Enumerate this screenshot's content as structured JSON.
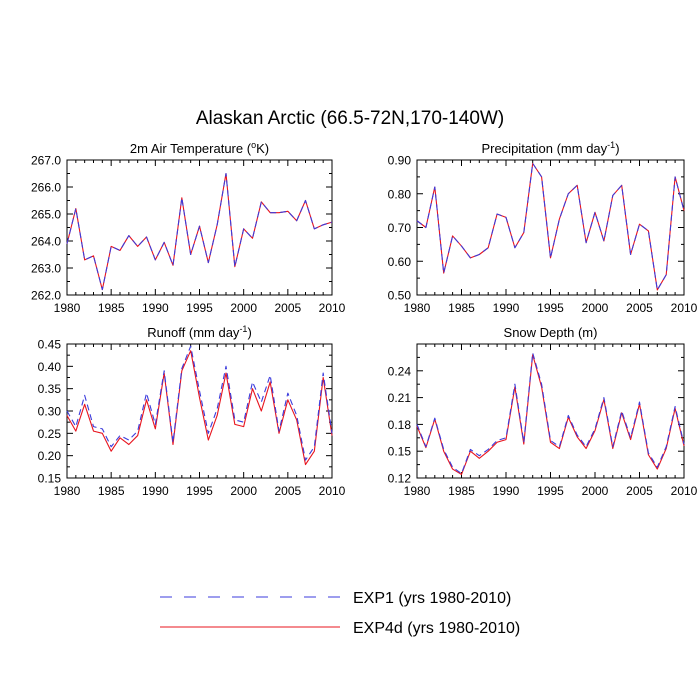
{
  "figure": {
    "title": "Alaskan Arctic (66.5-72N,170-140W)"
  },
  "legend": {
    "entries": [
      {
        "name": "EXP1 (yrs 1980-2010)",
        "color": "#3b3bdc",
        "dash": true
      },
      {
        "name": "EXP4d (yrs 1980-2010)",
        "color": "#e8141e",
        "dash": false
      }
    ]
  },
  "chart_data": [
    {
      "type": "line",
      "title": "2m Air Temperature (°K)",
      "title_main": "2m Air Temperature (",
      "title_sup": "o",
      "title_end": "K)",
      "xlim": [
        1980,
        2010
      ],
      "ylim": [
        262.0,
        267.0
      ],
      "x_ticks": [
        1980,
        1985,
        1990,
        1995,
        2000,
        2005,
        2010
      ],
      "x_tick_labels": [
        "1980",
        "1985",
        "1990",
        "1995",
        "2000",
        "2005",
        "2010"
      ],
      "y_ticks": [
        262.0,
        263.0,
        264.0,
        265.0,
        266.0,
        267.0
      ],
      "y_tick_labels": [
        "262.0",
        "263.0",
        "264.0",
        "265.0",
        "266.0",
        "267.0"
      ],
      "x": [
        1980,
        1981,
        1982,
        1983,
        1984,
        1985,
        1986,
        1987,
        1988,
        1989,
        1990,
        1991,
        1992,
        1993,
        1994,
        1995,
        1996,
        1997,
        1998,
        1999,
        2000,
        2001,
        2002,
        2003,
        2004,
        2005,
        2006,
        2007,
        2008,
        2009,
        2010
      ],
      "series": [
        {
          "name": "EXP1 (yrs 1980-2010)",
          "values": [
            263.9,
            265.2,
            263.3,
            263.45,
            262.2,
            263.8,
            263.65,
            264.2,
            263.8,
            264.15,
            263.3,
            263.95,
            263.1,
            265.6,
            263.5,
            264.55,
            263.2,
            264.6,
            266.5,
            263.05,
            264.45,
            264.1,
            265.45,
            265.05,
            265.05,
            265.1,
            264.75,
            265.5,
            264.45,
            264.6,
            264.7
          ]
        },
        {
          "name": "EXP4d (yrs 1980-2010)",
          "values": [
            263.9,
            265.2,
            263.3,
            263.45,
            262.2,
            263.8,
            263.65,
            264.2,
            263.8,
            264.15,
            263.3,
            263.95,
            263.1,
            265.6,
            263.5,
            264.55,
            263.2,
            264.6,
            266.5,
            263.05,
            264.45,
            264.1,
            265.45,
            265.05,
            265.05,
            265.1,
            264.75,
            265.5,
            264.45,
            264.6,
            264.7
          ]
        }
      ]
    },
    {
      "type": "line",
      "title": "Precipitation (mm day-1)",
      "title_main": "Precipitation (mm day",
      "title_sup": "-1",
      "title_end": ")",
      "xlim": [
        1980,
        2010
      ],
      "ylim": [
        0.5,
        0.9
      ],
      "x_ticks": [
        1980,
        1985,
        1990,
        1995,
        2000,
        2005,
        2010
      ],
      "x_tick_labels": [
        "1980",
        "1985",
        "1990",
        "1995",
        "2000",
        "2005",
        "2010"
      ],
      "y_ticks": [
        0.5,
        0.6,
        0.7,
        0.8,
        0.9
      ],
      "y_tick_labels": [
        "0.50",
        "0.60",
        "0.70",
        "0.80",
        "0.90"
      ],
      "x": [
        1980,
        1981,
        1982,
        1983,
        1984,
        1985,
        1986,
        1987,
        1988,
        1989,
        1990,
        1991,
        1992,
        1993,
        1994,
        1995,
        1996,
        1997,
        1998,
        1999,
        2000,
        2001,
        2002,
        2003,
        2004,
        2005,
        2006,
        2007,
        2008,
        2009,
        2010
      ],
      "series": [
        {
          "name": "EXP1 (yrs 1980-2010)",
          "values": [
            0.72,
            0.7,
            0.82,
            0.565,
            0.675,
            0.645,
            0.61,
            0.62,
            0.64,
            0.74,
            0.73,
            0.64,
            0.685,
            0.89,
            0.85,
            0.61,
            0.725,
            0.8,
            0.825,
            0.655,
            0.745,
            0.66,
            0.795,
            0.825,
            0.62,
            0.71,
            0.69,
            0.515,
            0.56,
            0.85,
            0.75
          ]
        },
        {
          "name": "EXP4d (yrs 1980-2010)",
          "values": [
            0.72,
            0.7,
            0.82,
            0.565,
            0.675,
            0.645,
            0.61,
            0.62,
            0.64,
            0.74,
            0.73,
            0.64,
            0.685,
            0.89,
            0.85,
            0.61,
            0.725,
            0.8,
            0.825,
            0.655,
            0.745,
            0.66,
            0.795,
            0.825,
            0.62,
            0.71,
            0.69,
            0.515,
            0.56,
            0.85,
            0.75
          ]
        }
      ]
    },
    {
      "type": "line",
      "title": "Runoff (mm day-1)",
      "title_main": "Runoff (mm day",
      "title_sup": "-1",
      "title_end": ")",
      "xlim": [
        1980,
        2010
      ],
      "ylim": [
        0.15,
        0.45
      ],
      "x_ticks": [
        1980,
        1985,
        1990,
        1995,
        2000,
        2005,
        2010
      ],
      "x_tick_labels": [
        "1980",
        "1985",
        "1990",
        "1995",
        "2000",
        "2005",
        "2010"
      ],
      "y_ticks": [
        0.15,
        0.2,
        0.25,
        0.3,
        0.35,
        0.4,
        0.45
      ],
      "y_tick_labels": [
        "0.15",
        "0.20",
        "0.25",
        "0.30",
        "0.35",
        "0.40",
        "0.45"
      ],
      "x": [
        1980,
        1981,
        1982,
        1983,
        1984,
        1985,
        1986,
        1987,
        1988,
        1989,
        1990,
        1991,
        1992,
        1993,
        1994,
        1995,
        1996,
        1997,
        1998,
        1999,
        2000,
        2001,
        2002,
        2003,
        2004,
        2005,
        2006,
        2007,
        2008,
        2009,
        2010
      ],
      "series": [
        {
          "name": "EXP1 (yrs 1980-2010)",
          "values": [
            0.3,
            0.265,
            0.335,
            0.265,
            0.26,
            0.22,
            0.245,
            0.235,
            0.255,
            0.34,
            0.27,
            0.39,
            0.23,
            0.395,
            0.445,
            0.345,
            0.25,
            0.305,
            0.4,
            0.28,
            0.275,
            0.365,
            0.32,
            0.38,
            0.255,
            0.34,
            0.29,
            0.19,
            0.22,
            0.385,
            0.25
          ]
        },
        {
          "name": "EXP4d (yrs 1980-2010)",
          "values": [
            0.29,
            0.255,
            0.315,
            0.255,
            0.25,
            0.21,
            0.24,
            0.225,
            0.245,
            0.325,
            0.26,
            0.385,
            0.225,
            0.39,
            0.435,
            0.33,
            0.235,
            0.29,
            0.385,
            0.27,
            0.265,
            0.35,
            0.3,
            0.365,
            0.25,
            0.325,
            0.28,
            0.18,
            0.21,
            0.375,
            0.245
          ]
        }
      ]
    },
    {
      "type": "line",
      "title": "Snow Depth (m)",
      "title_main": "Snow Depth (m)",
      "title_sup": "",
      "title_end": "",
      "xlim": [
        1980,
        2010
      ],
      "ylim": [
        0.12,
        0.27
      ],
      "x_ticks": [
        1980,
        1985,
        1990,
        1995,
        2000,
        2005,
        2010
      ],
      "x_tick_labels": [
        "1980",
        "1985",
        "1990",
        "1995",
        "2000",
        "2005",
        "2010"
      ],
      "y_ticks": [
        0.12,
        0.15,
        0.18,
        0.21,
        0.24
      ],
      "y_tick_labels": [
        "0.12",
        "0.15",
        "0.18",
        "0.21",
        "0.24"
      ],
      "x": [
        1980,
        1981,
        1982,
        1983,
        1984,
        1985,
        1986,
        1987,
        1988,
        1989,
        1990,
        1991,
        1992,
        1993,
        1994,
        1995,
        1996,
        1997,
        1998,
        1999,
        2000,
        2001,
        2002,
        2003,
        2004,
        2005,
        2006,
        2007,
        2008,
        2009,
        2010
      ],
      "series": [
        {
          "name": "EXP1 (yrs 1980-2010)",
          "values": [
            0.18,
            0.155,
            0.187,
            0.152,
            0.132,
            0.125,
            0.152,
            0.145,
            0.152,
            0.162,
            0.165,
            0.225,
            0.16,
            0.26,
            0.225,
            0.162,
            0.155,
            0.19,
            0.168,
            0.155,
            0.175,
            0.21,
            0.155,
            0.195,
            0.165,
            0.205,
            0.148,
            0.132,
            0.155,
            0.2,
            0.158
          ]
        },
        {
          "name": "EXP4d (yrs 1980-2010)",
          "values": [
            0.178,
            0.154,
            0.186,
            0.15,
            0.13,
            0.124,
            0.15,
            0.142,
            0.15,
            0.16,
            0.163,
            0.222,
            0.158,
            0.258,
            0.222,
            0.16,
            0.153,
            0.188,
            0.166,
            0.153,
            0.173,
            0.208,
            0.153,
            0.193,
            0.163,
            0.203,
            0.146,
            0.13,
            0.153,
            0.198,
            0.156
          ]
        }
      ]
    }
  ]
}
